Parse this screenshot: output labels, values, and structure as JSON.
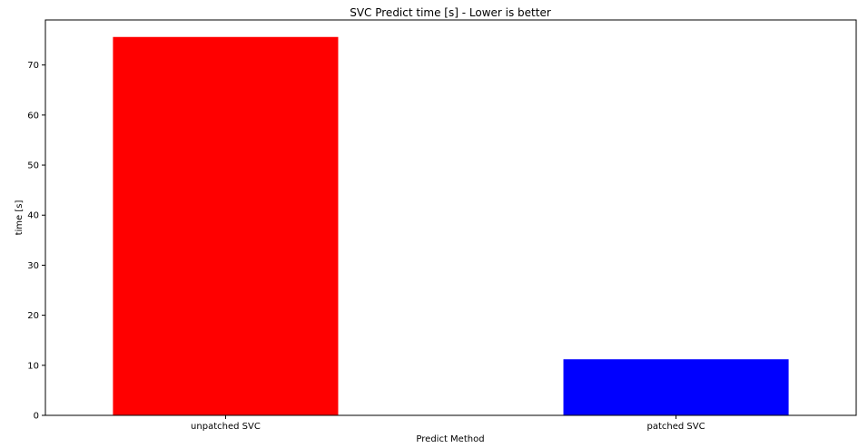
{
  "chart_data": {
    "type": "bar",
    "title": "SVC Predict time [s] - Lower is better",
    "xlabel": "Predict Method",
    "ylabel": "time [s]",
    "categories": [
      "unpatched SVC",
      "patched SVC"
    ],
    "values": [
      75.6,
      11.2
    ],
    "colors": [
      "#ff0000",
      "#0000ff"
    ],
    "ylim": [
      0,
      79
    ],
    "yticks": [
      0,
      10,
      20,
      30,
      40,
      50,
      60,
      70
    ],
    "grid": false
  }
}
